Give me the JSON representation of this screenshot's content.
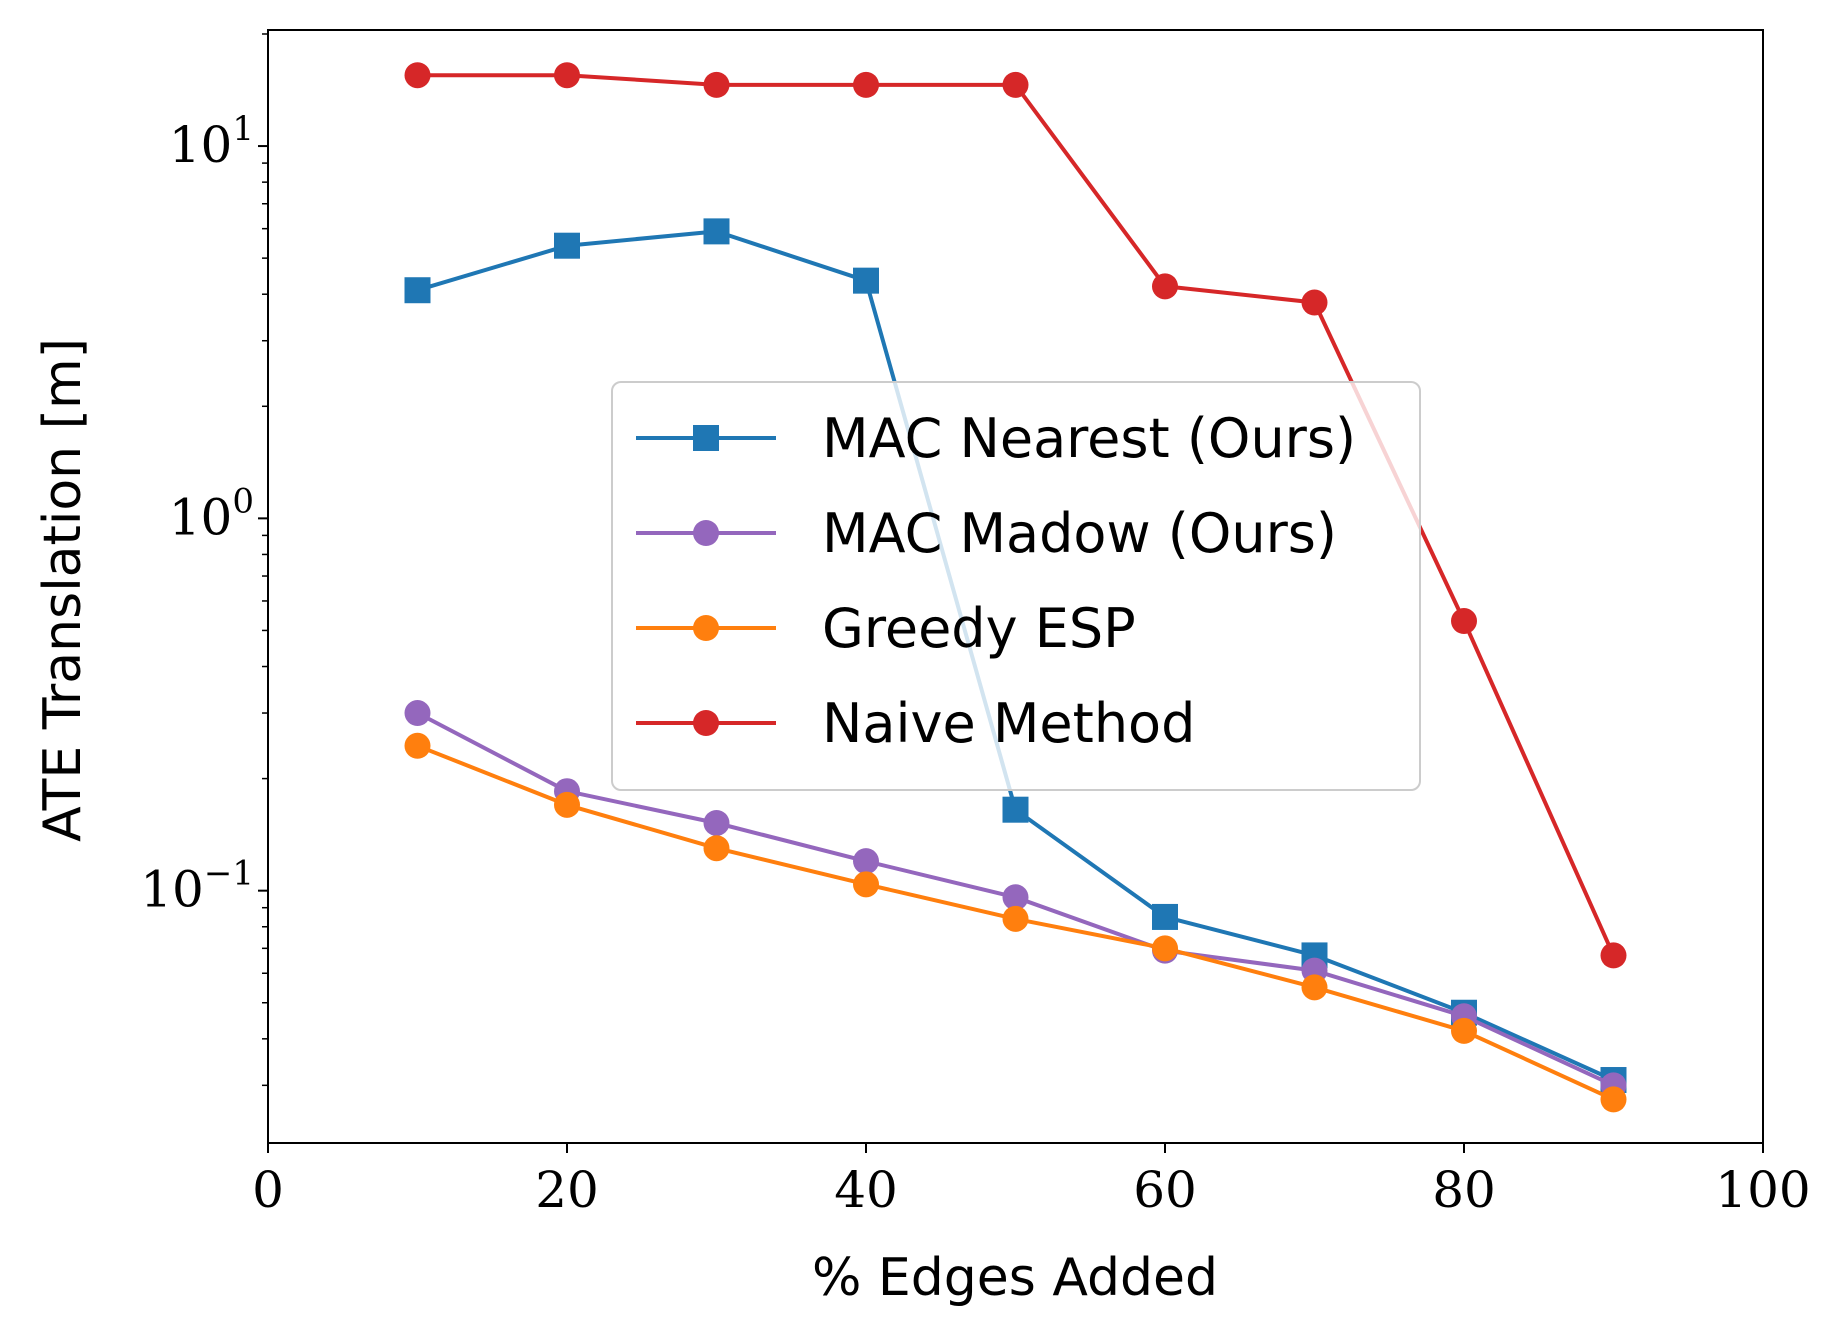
{
  "chart_data": {
    "type": "line",
    "title": "",
    "xlabel": "% Edges Added",
    "ylabel": "ATE Translation [m]",
    "xlim": [
      0,
      100
    ],
    "ylim": [
      0.021,
      20.5
    ],
    "yscale": "log",
    "x_ticks": [
      {
        "value": 0,
        "label": "0"
      },
      {
        "value": 20,
        "label": "20"
      },
      {
        "value": 40,
        "label": "40"
      },
      {
        "value": 60,
        "label": "60"
      },
      {
        "value": 80,
        "label": "80"
      },
      {
        "value": 100,
        "label": "100"
      }
    ],
    "y_ticks": [
      {
        "value": 0.1,
        "base": "10",
        "exp": "−1"
      },
      {
        "value": 1,
        "base": "10",
        "exp": "0"
      },
      {
        "value": 10,
        "base": "10",
        "exp": "1"
      }
    ],
    "x": [
      10,
      20,
      30,
      40,
      50,
      60,
      70,
      80,
      90
    ],
    "legend_position": "center",
    "series": [
      {
        "name": "MAC Nearest (Ours)",
        "color": "#1f77b4",
        "marker": "square",
        "values": [
          4.1,
          5.4,
          5.9,
          4.35,
          0.165,
          0.085,
          0.067,
          0.047,
          0.031
        ]
      },
      {
        "name": "MAC Madow (Ours)",
        "color": "#9467bd",
        "marker": "circle",
        "values": [
          0.3,
          0.185,
          0.152,
          0.12,
          0.096,
          0.069,
          0.061,
          0.046,
          0.03
        ]
      },
      {
        "name": "Greedy ESP",
        "color": "#ff7f0e",
        "marker": "circle",
        "values": [
          0.245,
          0.17,
          0.13,
          0.104,
          0.084,
          0.07,
          0.055,
          0.042,
          0.0275
        ]
      },
      {
        "name": "Naive Method",
        "color": "#d62728",
        "marker": "circle",
        "values": [
          15.5,
          15.5,
          14.6,
          14.6,
          14.6,
          4.2,
          3.8,
          0.53,
          0.067
        ]
      }
    ]
  }
}
